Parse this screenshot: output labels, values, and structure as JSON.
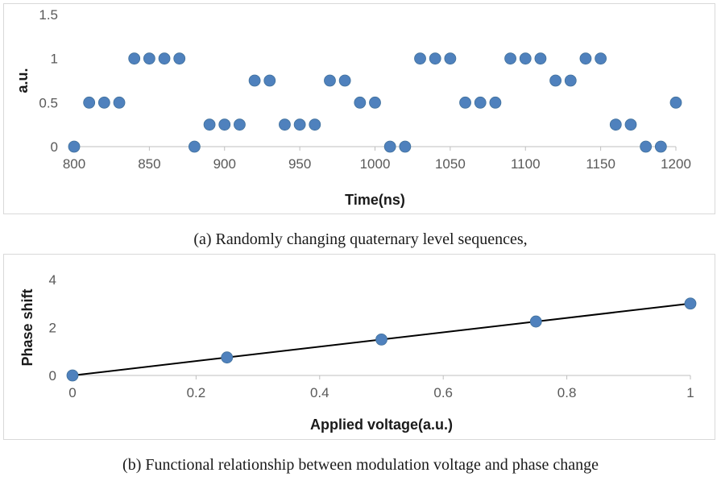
{
  "chart_data": [
    {
      "type": "scatter",
      "xlabel": "Time(ns)",
      "ylabel": "a.u.",
      "xlim": [
        800,
        1200
      ],
      "ylim": [
        0,
        1.5
      ],
      "xticks": [
        "800",
        "850",
        "900",
        "950",
        "1000",
        "1050",
        "1100",
        "1150",
        "1200"
      ],
      "yticks": [
        "0",
        "0.5",
        "1",
        "1.5"
      ],
      "grid": false,
      "marker_color": "#4f81bd",
      "x": [
        800,
        810,
        820,
        830,
        840,
        850,
        860,
        870,
        880,
        890,
        900,
        910,
        920,
        930,
        940,
        950,
        960,
        970,
        980,
        990,
        1000,
        1010,
        1020,
        1030,
        1040,
        1050,
        1060,
        1070,
        1080,
        1090,
        1100,
        1110,
        1120,
        1130,
        1140,
        1150,
        1160,
        1170,
        1180,
        1190,
        1200
      ],
      "y": [
        0,
        0.5,
        0.5,
        0.5,
        1,
        1,
        1,
        1,
        0,
        0.25,
        0.25,
        0.25,
        0.75,
        0.75,
        0.25,
        0.25,
        0.25,
        0.75,
        0.75,
        0.5,
        0.5,
        0,
        0,
        1,
        1,
        1,
        0.5,
        0.5,
        0.5,
        1,
        1,
        1,
        0.75,
        0.75,
        1,
        1,
        0.25,
        0.25,
        0,
        0,
        0.5
      ],
      "caption": "(a) Randomly changing quaternary level sequences,"
    },
    {
      "type": "scatter",
      "xlabel": "Applied voltage(a.u.)",
      "ylabel": "Phase shift",
      "xlim": [
        0,
        1
      ],
      "ylim": [
        0,
        4
      ],
      "xticks": [
        "0",
        "0.2",
        "0.4",
        "0.6",
        "0.8",
        "1"
      ],
      "yticks": [
        "0",
        "2",
        "4"
      ],
      "grid": false,
      "marker_color": "#4f81bd",
      "x": [
        0,
        0.25,
        0.5,
        0.75,
        1
      ],
      "y": [
        0,
        0.75,
        1.5,
        2.25,
        3
      ],
      "trendline": {
        "x": [
          0,
          1
        ],
        "y": [
          0,
          3
        ],
        "color": "#000000"
      },
      "caption": "(b) Functional relationship between modulation voltage and phase change"
    }
  ]
}
